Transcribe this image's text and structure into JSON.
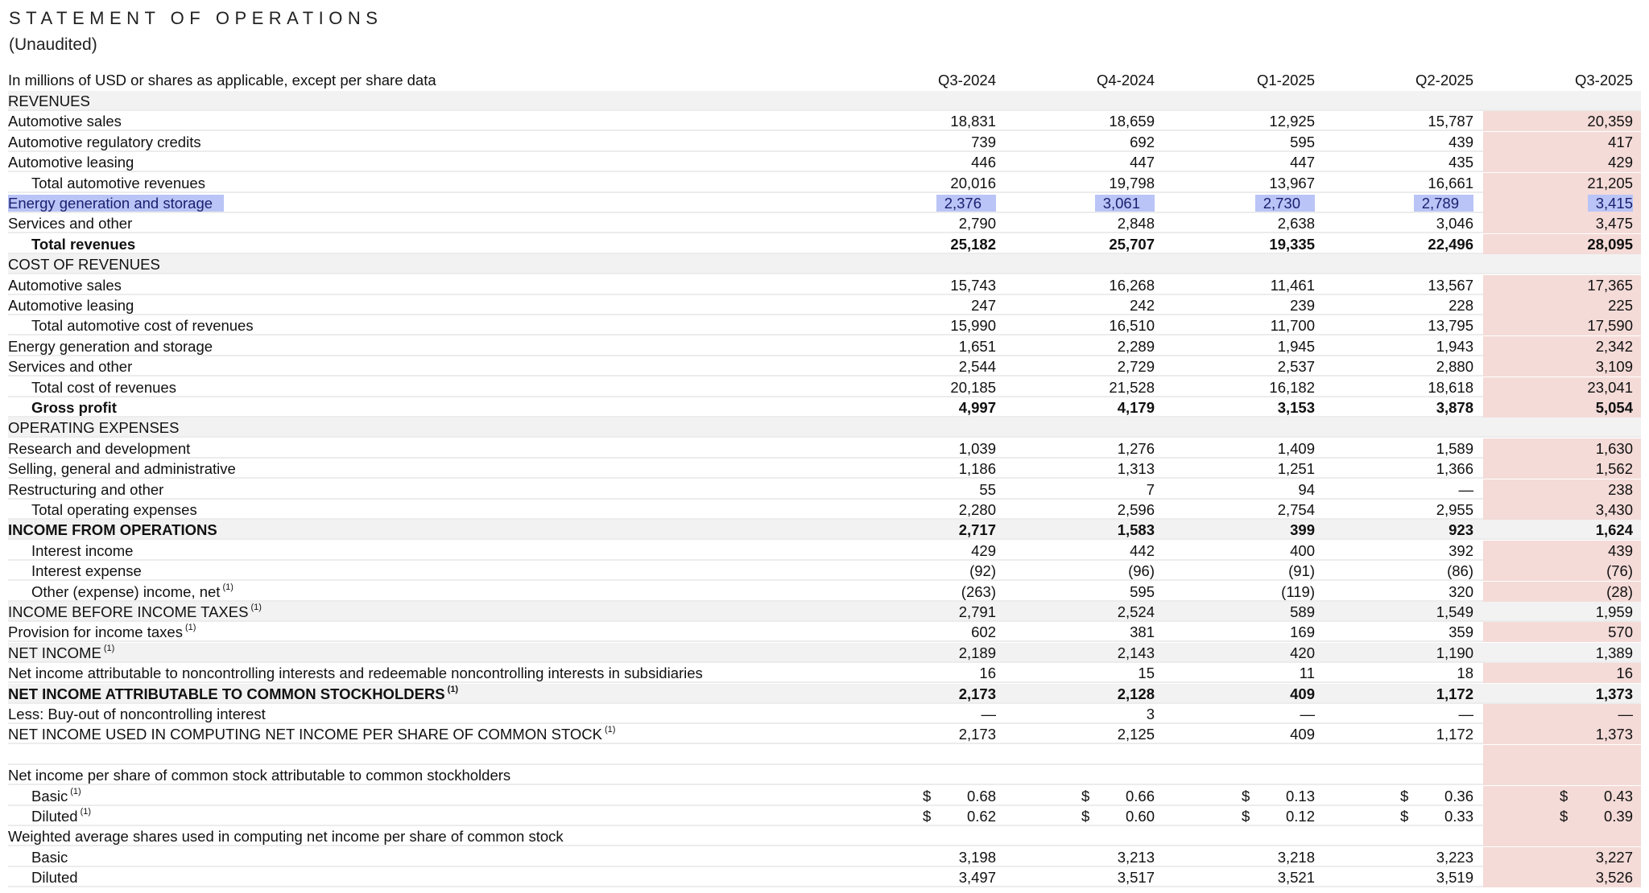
{
  "title": "STATEMENT OF OPERATIONS",
  "subtitle": "(Unaudited)",
  "header": {
    "label": "In millions of USD or shares as applicable, except per share data",
    "columns": [
      "Q3-2024",
      "Q4-2024",
      "Q1-2025",
      "Q2-2025",
      "Q3-2025"
    ]
  },
  "colors": {
    "highlight_column": "#f4dbd8",
    "section_shade": "#f2f2f2",
    "selection": "#bac4f6"
  },
  "rows": [
    {
      "label": "REVENUES",
      "shade": true,
      "values": []
    },
    {
      "label": "Automotive sales",
      "values": [
        "18,831",
        "18,659",
        "12,925",
        "15,787",
        "20,359"
      ]
    },
    {
      "label": "Automotive regulatory credits",
      "values": [
        "739",
        "692",
        "595",
        "439",
        "417"
      ]
    },
    {
      "label": "Automotive leasing",
      "values": [
        "446",
        "447",
        "447",
        "435",
        "429"
      ]
    },
    {
      "label": "Total automotive revenues",
      "indent": true,
      "values": [
        "20,016",
        "19,798",
        "13,967",
        "16,661",
        "21,205"
      ]
    },
    {
      "label": "Energy generation and storage",
      "selected": true,
      "values": [
        "2,376",
        "3,061",
        "2,730",
        "2,789",
        "3,415"
      ]
    },
    {
      "label": "Services and other",
      "values": [
        "2,790",
        "2,848",
        "2,638",
        "3,046",
        "3,475"
      ]
    },
    {
      "label": "Total revenues",
      "indent": true,
      "bold": true,
      "values": [
        "25,182",
        "25,707",
        "19,335",
        "22,496",
        "28,095"
      ]
    },
    {
      "label": "COST OF REVENUES",
      "shade": true,
      "values": []
    },
    {
      "label": "Automotive sales",
      "values": [
        "15,743",
        "16,268",
        "11,461",
        "13,567",
        "17,365"
      ]
    },
    {
      "label": "Automotive leasing",
      "values": [
        "247",
        "242",
        "239",
        "228",
        "225"
      ]
    },
    {
      "label": "Total automotive cost of revenues",
      "indent": true,
      "values": [
        "15,990",
        "16,510",
        "11,700",
        "13,795",
        "17,590"
      ]
    },
    {
      "label": "Energy generation and storage",
      "values": [
        "1,651",
        "2,289",
        "1,945",
        "1,943",
        "2,342"
      ]
    },
    {
      "label": "Services and other",
      "values": [
        "2,544",
        "2,729",
        "2,537",
        "2,880",
        "3,109"
      ]
    },
    {
      "label": "Total cost of revenues",
      "indent": true,
      "values": [
        "20,185",
        "21,528",
        "16,182",
        "18,618",
        "23,041"
      ]
    },
    {
      "label": "Gross profit",
      "indent": true,
      "bold": true,
      "values": [
        "4,997",
        "4,179",
        "3,153",
        "3,878",
        "5,054"
      ]
    },
    {
      "label": "OPERATING EXPENSES",
      "shade": true,
      "values": []
    },
    {
      "label": "Research and development",
      "values": [
        "1,039",
        "1,276",
        "1,409",
        "1,589",
        "1,630"
      ]
    },
    {
      "label": "Selling, general and administrative",
      "values": [
        "1,186",
        "1,313",
        "1,251",
        "1,366",
        "1,562"
      ]
    },
    {
      "label": "Restructuring and other",
      "values": [
        "55",
        "7",
        "94",
        "—",
        "238"
      ]
    },
    {
      "label": "Total operating expenses",
      "indent": true,
      "values": [
        "2,280",
        "2,596",
        "2,754",
        "2,955",
        "3,430"
      ]
    },
    {
      "label": "INCOME FROM OPERATIONS",
      "shade": true,
      "bold": true,
      "values": [
        "2,717",
        "1,583",
        "399",
        "923",
        "1,624"
      ]
    },
    {
      "label": "Interest income",
      "indent": true,
      "values": [
        "429",
        "442",
        "400",
        "392",
        "439"
      ]
    },
    {
      "label": "Interest expense",
      "indent": true,
      "values": [
        "(92)",
        "(96)",
        "(91)",
        "(86)",
        "(76)"
      ]
    },
    {
      "label": "Other (expense) income, net",
      "note": "(1)",
      "indent": true,
      "values": [
        "(263)",
        "595",
        "(119)",
        "320",
        "(28)"
      ]
    },
    {
      "label": "INCOME BEFORE INCOME TAXES",
      "note": "(1)",
      "shade": true,
      "values": [
        "2,791",
        "2,524",
        "589",
        "1,549",
        "1,959"
      ]
    },
    {
      "label": "Provision for income taxes",
      "note": "(1)",
      "values": [
        "602",
        "381",
        "169",
        "359",
        "570"
      ]
    },
    {
      "label": "NET INCOME",
      "note": "(1)",
      "shade": true,
      "values": [
        "2,189",
        "2,143",
        "420",
        "1,190",
        "1,389"
      ]
    },
    {
      "label": "Net income attributable to noncontrolling interests and redeemable noncontrolling interests in subsidiaries",
      "values": [
        "16",
        "15",
        "11",
        "18",
        "16"
      ]
    },
    {
      "label": "NET INCOME ATTRIBUTABLE TO COMMON STOCKHOLDERS",
      "note": "(1)",
      "shade": true,
      "bold": true,
      "values": [
        "2,173",
        "2,128",
        "409",
        "1,172",
        "1,373"
      ]
    },
    {
      "label": "Less: Buy-out of noncontrolling interest",
      "values": [
        "—",
        "3",
        "—",
        "—",
        "—"
      ]
    },
    {
      "label": "NET INCOME USED IN COMPUTING NET INCOME PER SHARE OF COMMON STOCK",
      "note": "(1)",
      "values": [
        "2,173",
        "2,125",
        "409",
        "1,172",
        "1,373"
      ]
    },
    {
      "label": "",
      "values": []
    },
    {
      "label": "Net income per share of common stock attributable to common stockholders",
      "values": []
    },
    {
      "label": "Basic",
      "note": "(1)",
      "indent": true,
      "currency": "$",
      "values": [
        "0.68",
        "0.66",
        "0.13",
        "0.36",
        "0.43"
      ]
    },
    {
      "label": "Diluted",
      "note": "(1)",
      "indent": true,
      "currency": "$",
      "values": [
        "0.62",
        "0.60",
        "0.12",
        "0.33",
        "0.39"
      ]
    },
    {
      "label": "Weighted average shares used in computing net income per share of common stock",
      "values": []
    },
    {
      "label": "Basic",
      "indent": true,
      "values": [
        "3,198",
        "3,213",
        "3,218",
        "3,223",
        "3,227"
      ]
    },
    {
      "label": "Diluted",
      "indent": true,
      "values": [
        "3,497",
        "3,517",
        "3,521",
        "3,519",
        "3,526"
      ]
    }
  ]
}
